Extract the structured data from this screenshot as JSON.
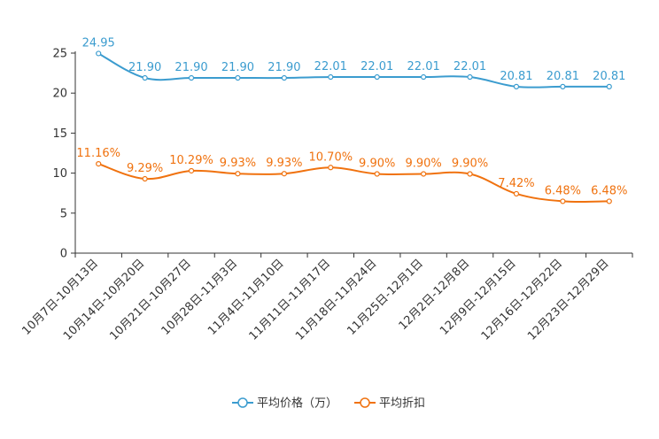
{
  "chart_data": {
    "type": "line",
    "title": "",
    "xlabel": "",
    "ylabel": "",
    "ylim": [
      0,
      25
    ],
    "yticks": [
      0,
      5,
      10,
      15,
      20,
      25
    ],
    "grid": false,
    "legend_position": "bottom",
    "categories": [
      "10月7日-10月13日",
      "10月14日-10月20日",
      "10月21日-10月27日",
      "10月28日-11月3日",
      "11月4日-11月10日",
      "11月11日-11月17日",
      "11月18日-11月24日",
      "11月25日-12月1日",
      "12月2日-12月8日",
      "12月9日-12月15日",
      "12月16日-12月22日",
      "12月23日-12月29日"
    ],
    "series": [
      {
        "name": "平均价格（万）",
        "color": "#3b9ccf",
        "values": [
          24.95,
          21.9,
          21.9,
          21.9,
          21.9,
          22.01,
          22.01,
          22.01,
          22.01,
          20.81,
          20.81,
          20.81
        ],
        "labels": [
          "24.95",
          "21.90",
          "21.90",
          "21.90",
          "21.90",
          "22.01",
          "22.01",
          "22.01",
          "22.01",
          "20.81",
          "20.81",
          "20.81"
        ]
      },
      {
        "name": "平均折扣",
        "color": "#f0720f",
        "values": [
          11.16,
          9.29,
          10.29,
          9.93,
          9.93,
          10.7,
          9.9,
          9.9,
          9.9,
          7.42,
          6.48,
          6.48
        ],
        "labels": [
          "11.16%",
          "9.29%",
          "10.29%",
          "9.93%",
          "9.93%",
          "10.70%",
          "9.90%",
          "9.90%",
          "9.90%",
          "7.42%",
          "6.48%",
          "6.48%"
        ]
      }
    ]
  }
}
